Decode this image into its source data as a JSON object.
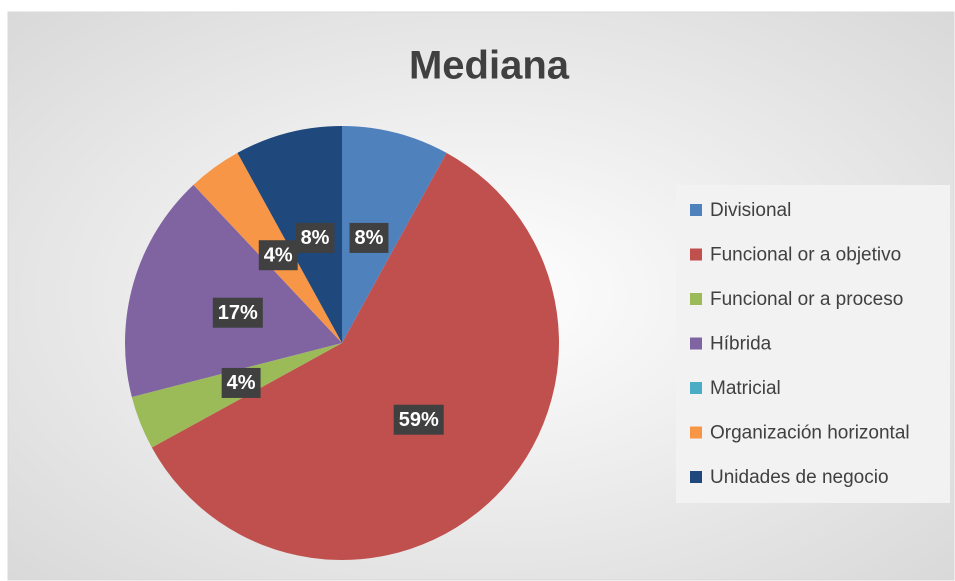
{
  "chart_data": {
    "type": "pie",
    "title": "Mediana",
    "categories": [
      "Divisional",
      "Funcional or a objetivo",
      "Funcional or a proceso",
      "Híbrida",
      "Matricial",
      "Organización horizontal",
      "Unidades de negocio"
    ],
    "values": [
      8,
      59,
      4,
      17,
      0,
      4,
      8
    ],
    "value_labels": [
      "8%",
      "59%",
      "4%",
      "17%",
      null,
      "4%",
      "8%"
    ],
    "colors": [
      "#4f81bd",
      "#c0504d",
      "#9bbb59",
      "#8064a2",
      "#4bacc6",
      "#f79646",
      "#1f497d"
    ],
    "legend": "right"
  }
}
